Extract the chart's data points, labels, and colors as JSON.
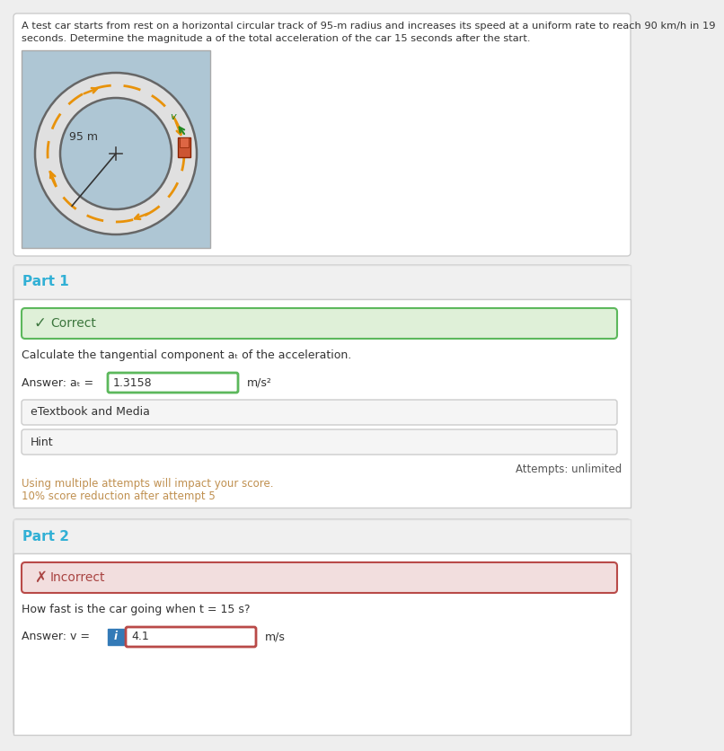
{
  "problem_text_line1": "A test car starts from rest on a horizontal circular track of 95-m radius and increases its speed at a uniform rate to reach 90 km/h in 19",
  "problem_text_line2": "seconds. Determine the magnitude a of the total acceleration of the car 15 seconds after the start.",
  "radius_label": "95 m",
  "part1_label": "Part 1",
  "part1_status": "Correct",
  "part1_question": "Calculate the tangential component aₜ of the acceleration.",
  "part1_answer_label": "Answer: aₜ =",
  "part1_answer_value": "1.3158",
  "part1_answer_unit": "m/s²",
  "part1_etextbook": "eTextbook and Media",
  "part1_hint": "Hint",
  "part1_attempts": "Attempts: unlimited",
  "part1_warning1": "Using multiple attempts will impact your score.",
  "part1_warning2": "10% score reduction after attempt 5",
  "part2_label": "Part 2",
  "part2_status": "Incorrect",
  "part2_question": "How fast is the car going when t = 15 s?",
  "part2_answer_label": "Answer: v =",
  "part2_answer_value": "4.1",
  "part2_answer_unit": "m/s",
  "bg_outer": "#eeeeee",
  "bg_white": "#ffffff",
  "bg_diagram": "#aec6d4",
  "color_correct_bg": "#dff0d8",
  "color_correct_border": "#5cb85c",
  "color_correct_text": "#3c763d",
  "color_incorrect_bg": "#f2dede",
  "color_incorrect_border": "#b94a48",
  "color_incorrect_text": "#a94442",
  "color_part_label": "#31b0d5",
  "color_input_border_correct": "#5cb85c",
  "color_input_border_incorrect": "#b94a48",
  "color_warning": "#c09050",
  "color_info_btn": "#337ab7",
  "color_text_main": "#333333",
  "color_text_gray": "#555555",
  "color_track": "#e0e0e0",
  "color_track_border": "#666666",
  "color_dashes": "#e8920a",
  "color_section_divider": "#dddddd",
  "color_gray_btn": "#f5f5f5",
  "color_gray_btn_border": "#cccccc"
}
